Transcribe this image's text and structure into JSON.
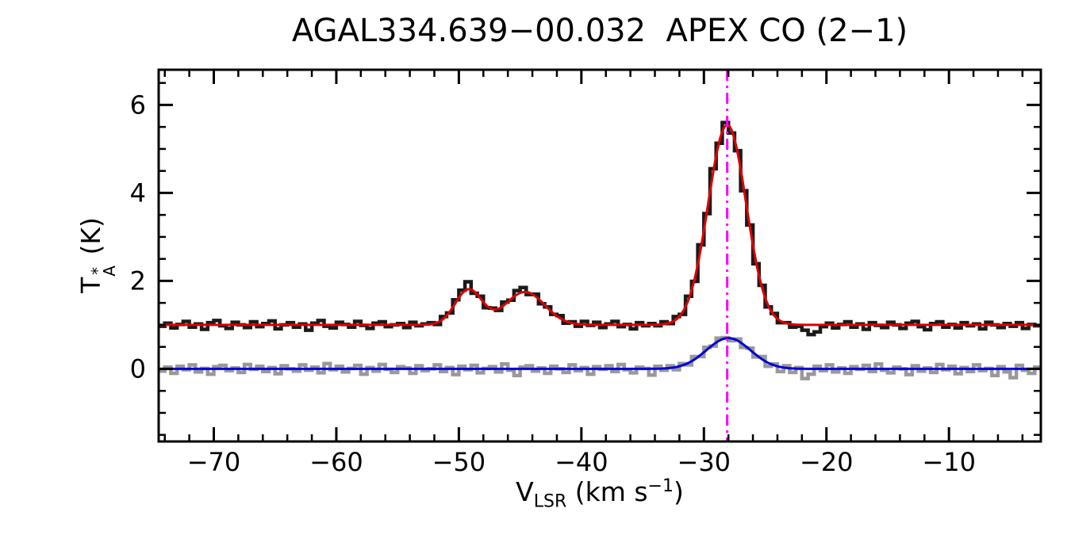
{
  "chart_data": {
    "type": "line",
    "title": "AGAL334.639−00.032  APEX CO (2−1)",
    "xlabel": {
      "base": "V",
      "sub": "LSR",
      "mid": " (km s",
      "sup": "−1",
      "end": ")"
    },
    "ylabel": {
      "base": "T",
      "sup": "*",
      "sub": "A",
      "end": " (K)"
    },
    "axes": {
      "xlim": [
        -74.5,
        -2.5
      ],
      "ylim": [
        -1.65,
        6.8
      ],
      "x_major_ticks": [
        -70,
        -60,
        -50,
        -40,
        -30,
        -20,
        -10
      ],
      "x_minor_step": 2,
      "y_major_ticks": [
        0,
        2,
        4,
        6
      ],
      "y_minor_step": 0.5,
      "grid": false,
      "frame_color": "#000000"
    },
    "x_start": -74.25,
    "dx": 0.5,
    "series": [
      {
        "name": "observed-spectrum",
        "style": "histogram",
        "color": "#1a1a1a",
        "width": 4.5,
        "values": [
          0.97,
          1.04,
          0.93,
          1.01,
          1.08,
          0.95,
          1.02,
          0.9,
          1.05,
          1.1,
          0.98,
          0.92,
          1.06,
          1.0,
          0.94,
          1.07,
          0.96,
          1.03,
          1.09,
          0.91,
          1.0,
          1.05,
          0.95,
          1.02,
          0.88,
          1.04,
          1.1,
          0.97,
          0.93,
          1.06,
          1.01,
          0.95,
          1.08,
          0.99,
          0.92,
          1.04,
          1.07,
          0.96,
          1.0,
          1.03,
          0.94,
          1.06,
          0.98,
          1.02,
          1.05,
          1.01,
          1.19,
          1.27,
          1.57,
          1.79,
          1.98,
          1.72,
          1.65,
          1.39,
          1.38,
          1.33,
          1.52,
          1.56,
          1.78,
          1.85,
          1.69,
          1.7,
          1.48,
          1.41,
          1.24,
          1.21,
          1.04,
          1.07,
          0.97,
          1.08,
          0.99,
          1.06,
          0.94,
          1.02,
          1.08,
          0.96,
          1.01,
          0.91,
          1.05,
          0.98,
          1.03,
          0.98,
          1.07,
          1.03,
          1.19,
          1.24,
          1.65,
          1.99,
          2.82,
          3.53,
          4.55,
          5.13,
          5.6,
          5.36,
          4.96,
          4.05,
          3.27,
          2.39,
          1.9,
          1.41,
          1.26,
          1.05,
          1.05,
          0.95,
          0.97,
          0.88,
          0.78,
          0.84,
          0.96,
          1.04,
          0.93,
          1.01,
          1.07,
          0.95,
          1.02,
          0.9,
          1.05,
          0.99,
          0.94,
          1.06,
          1.0,
          0.92,
          1.04,
          1.08,
          0.96,
          0.89,
          1.03,
          1.07,
          0.95,
          1.01,
          0.93,
          1.05,
          0.98,
          1.02,
          0.91,
          1.06,
          1.0,
          0.94,
          1.03,
          0.97,
          1.05,
          0.92,
          1.01,
          0.98
        ]
      },
      {
        "name": "residual-spectrum",
        "style": "histogram",
        "color": "#999999",
        "width": 4.5,
        "values": [
          -0.05,
          0.04,
          -0.1,
          0.06,
          -0.02,
          0.09,
          -0.07,
          0.01,
          -0.12,
          0.05,
          0.08,
          -0.04,
          0.02,
          -0.08,
          0.1,
          -0.01,
          0.06,
          -0.06,
          0.03,
          -0.11,
          0.07,
          0.0,
          -0.05,
          0.09,
          -0.03,
          0.04,
          -0.09,
          0.12,
          -0.02,
          0.06,
          -0.07,
          0.01,
          0.08,
          -0.12,
          0.03,
          -0.05,
          0.1,
          -0.01,
          -0.08,
          0.05,
          0.02,
          -0.1,
          0.07,
          -0.04,
          0.0,
          0.09,
          -0.06,
          0.03,
          -0.13,
          0.06,
          -0.02,
          0.08,
          -0.09,
          0.01,
          0.05,
          -0.07,
          0.11,
          -0.03,
          -0.15,
          0.04,
          0.07,
          -0.05,
          0.02,
          -0.1,
          0.06,
          0.0,
          -0.08,
          0.09,
          -0.04,
          0.03,
          -0.12,
          0.05,
          -0.01,
          0.07,
          -0.06,
          0.1,
          -0.02,
          -0.09,
          0.04,
          0.01,
          -0.14,
          0.06,
          -0.03,
          0.07,
          -0.02,
          0.12,
          0.09,
          0.28,
          0.28,
          0.49,
          0.52,
          0.7,
          0.71,
          0.64,
          0.68,
          0.49,
          0.47,
          0.27,
          0.28,
          0.06,
          0.11,
          -0.06,
          0.07,
          -0.08,
          0.03,
          -0.22,
          -0.12,
          0.06,
          -0.04,
          0.09,
          -0.07,
          0.02,
          -0.1,
          0.05,
          -0.01,
          0.08,
          -0.06,
          0.11,
          -0.03,
          -0.09,
          0.04,
          0.0,
          -0.13,
          0.07,
          -0.05,
          0.02,
          -0.08,
          0.1,
          -0.02,
          0.06,
          -0.11,
          0.03,
          -0.06,
          0.09,
          -0.04,
          0.01,
          -0.15,
          0.05,
          -0.07,
          -0.2,
          0.08,
          -0.03,
          -0.1,
          0.04
        ]
      }
    ],
    "fits": [
      {
        "name": "gaussian-fit-observed",
        "color": "#dd0000",
        "width": 3,
        "baseline": 1.0,
        "components": [
          {
            "center": -49.2,
            "amp": 0.8,
            "sigma": 1.1
          },
          {
            "center": -44.6,
            "amp": 0.75,
            "sigma": 1.6
          },
          {
            "center": -28.1,
            "amp": 4.55,
            "sigma": 1.55
          }
        ]
      },
      {
        "name": "gaussian-fit-residual",
        "color": "#0000dd",
        "width": 3,
        "baseline": 0.0,
        "components": [
          {
            "center": -28.0,
            "amp": 0.7,
            "sigma": 1.8
          }
        ]
      }
    ],
    "vline": {
      "x": -28.1,
      "color": "#ff00ff",
      "width": 3,
      "dash": [
        14,
        6,
        3,
        6
      ]
    }
  }
}
